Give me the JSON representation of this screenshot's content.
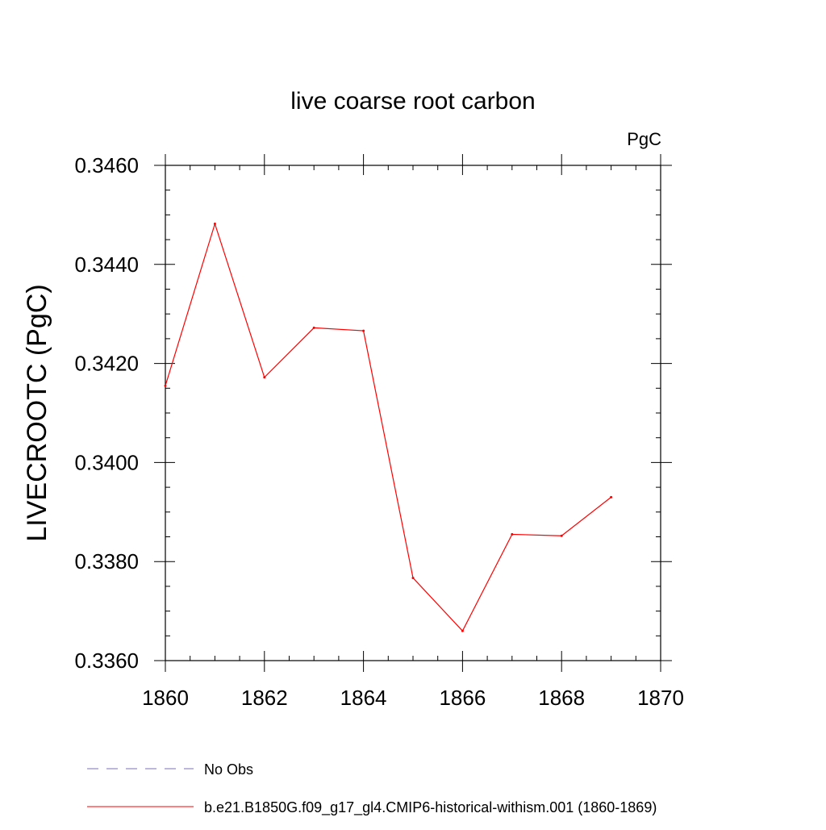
{
  "chart_data": {
    "type": "line",
    "title": "live coarse root carbon",
    "units_label": "PgC",
    "xlabel": "",
    "ylabel": "LIVECROOTC  (PgC)",
    "xlim": [
      1860,
      1870
    ],
    "ylim": [
      0.336,
      0.346
    ],
    "x_ticks": [
      1860,
      1862,
      1864,
      1866,
      1868,
      1870
    ],
    "x_tick_labels": [
      "1860",
      "1862",
      "1864",
      "1866",
      "1868",
      "1870"
    ],
    "y_ticks": [
      0.336,
      0.338,
      0.34,
      0.342,
      0.344,
      0.346
    ],
    "y_tick_labels": [
      "0.3360",
      "0.3380",
      "0.3400",
      "0.3420",
      "0.3440",
      "0.3460"
    ],
    "grid": false,
    "legend_position": "bottom",
    "series": [
      {
        "name": "b.e21.B1850G.f09_g17_gl4.CMIP6-historical-withism.001 (1860-1869)",
        "color": "#ff0000",
        "style": "solid",
        "x": [
          1860,
          1861,
          1862,
          1863,
          1864,
          1865,
          1866,
          1867,
          1868,
          1869
        ],
        "y": [
          0.34155,
          0.34482,
          0.34172,
          0.34272,
          0.34266,
          0.33767,
          0.3366,
          0.33855,
          0.33852,
          0.3393
        ]
      },
      {
        "name": "No Obs",
        "color": "#7b6fb8",
        "style": "dashed",
        "x": [],
        "y": []
      }
    ]
  }
}
